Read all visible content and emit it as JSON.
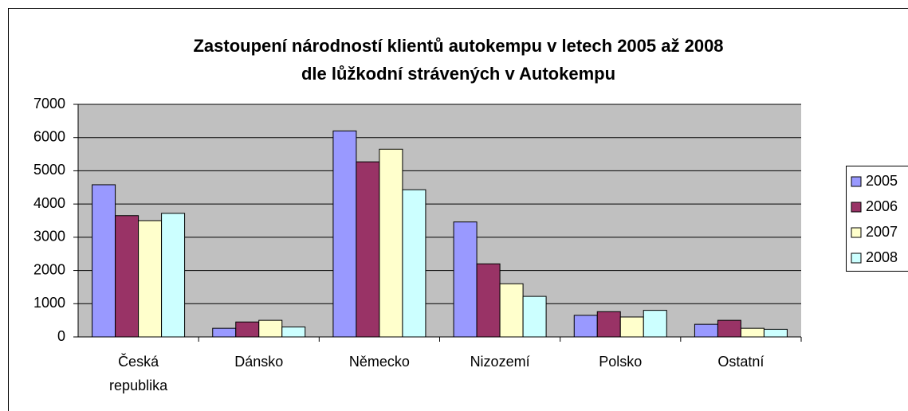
{
  "chart_data": {
    "type": "bar",
    "title": [
      "Zastoupení národností klientů autokempu v letech 2005 až 2008",
      "dle lůžkodní strávených v Autokempu"
    ],
    "categories": [
      "Česká republika",
      "Dánsko",
      "Německo",
      "Nizozemí",
      "Polsko",
      "Ostatní"
    ],
    "series": [
      {
        "name": "2005",
        "color": "#9999ff",
        "values": [
          4580,
          260,
          6200,
          3460,
          650,
          380
        ]
      },
      {
        "name": "2006",
        "color": "#993366",
        "values": [
          3650,
          450,
          5270,
          2200,
          760,
          500
        ]
      },
      {
        "name": "2007",
        "color": "#ffffcc",
        "values": [
          3500,
          500,
          5650,
          1600,
          600,
          260
        ]
      },
      {
        "name": "2008",
        "color": "#ccffff",
        "values": [
          3720,
          300,
          4430,
          1220,
          800,
          230
        ]
      }
    ],
    "ylim": [
      0,
      7000
    ],
    "yticks": [
      0,
      1000,
      2000,
      3000,
      4000,
      5000,
      6000,
      7000
    ],
    "grid": true,
    "legend": "right"
  }
}
